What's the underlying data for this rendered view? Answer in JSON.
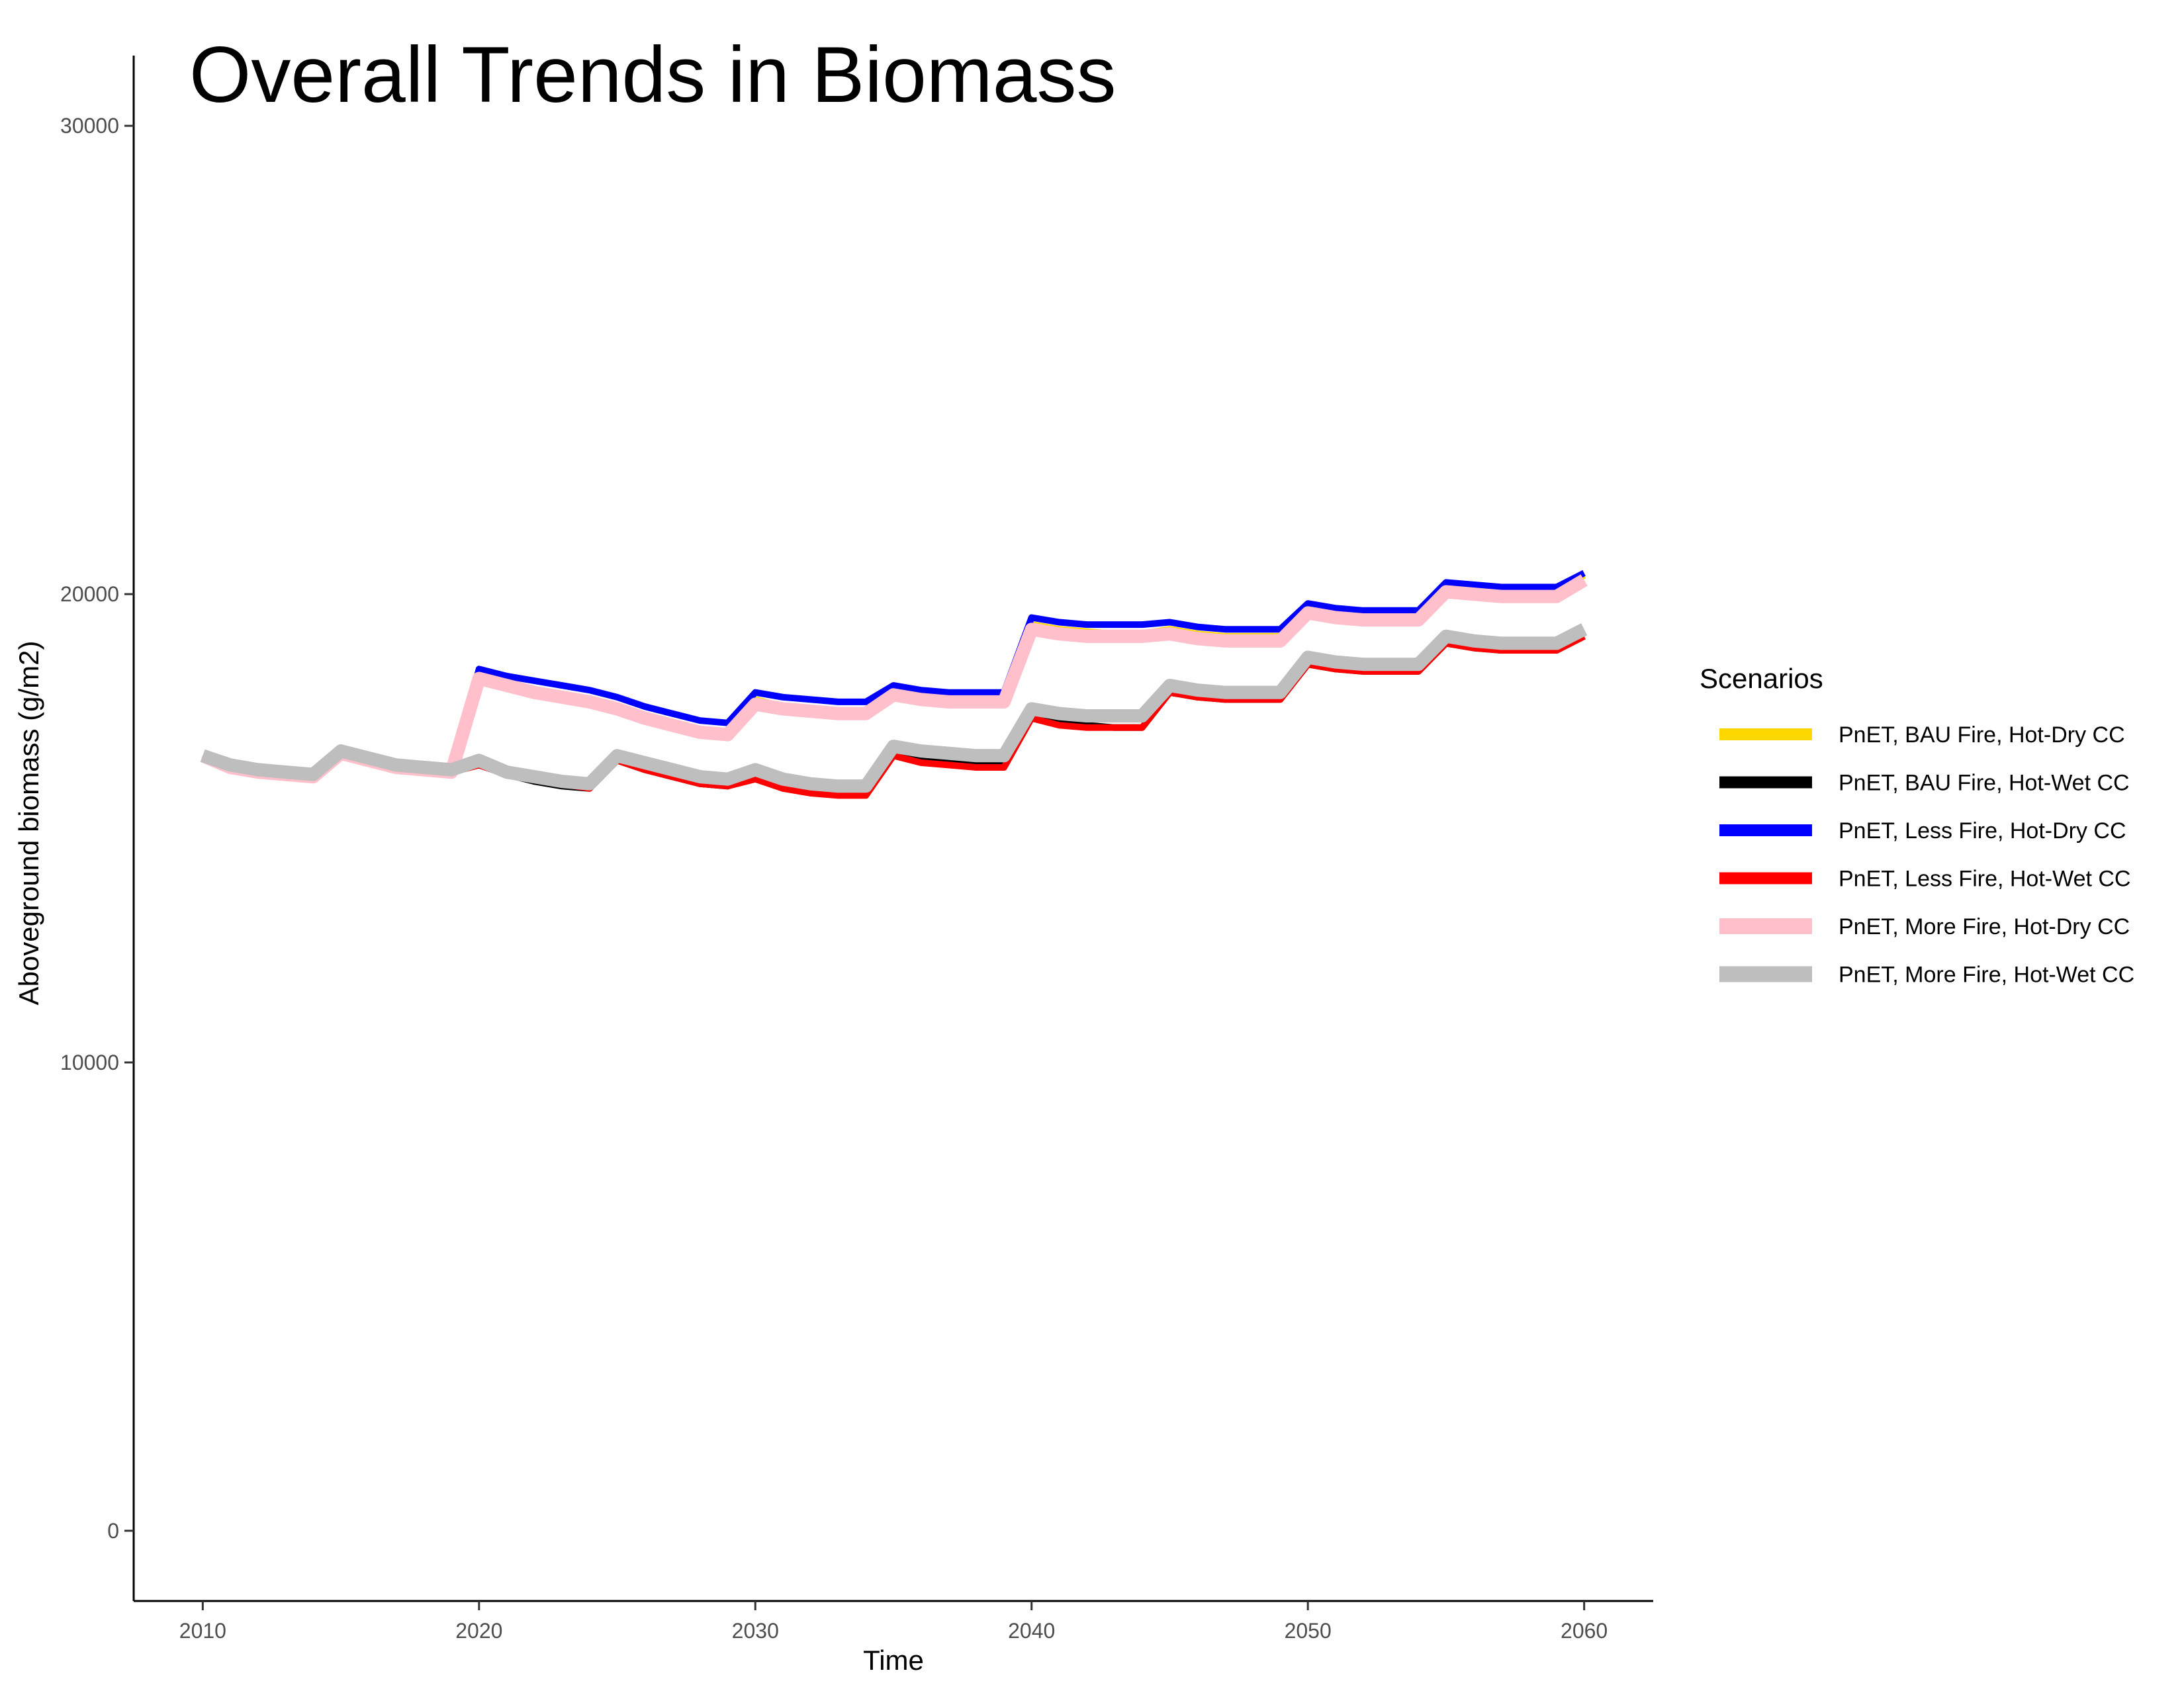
{
  "chart_data": {
    "type": "line",
    "title": "Overall Trends in Biomass",
    "xlabel": "Time",
    "ylabel": "Aboveground biomass (g/m2)",
    "xlim": [
      2007.5,
      2062.5
    ],
    "ylim": [
      -1500,
      31500
    ],
    "x_ticks": [
      "2010",
      "2020",
      "2030",
      "2040",
      "2050",
      "2060"
    ],
    "y_ticks": [
      "0",
      "10000",
      "20000",
      "30000"
    ],
    "grid": false,
    "legend_title": "Scenarios",
    "legend_position": "right",
    "x": [
      2010,
      2011,
      2012,
      2013,
      2014,
      2015,
      2016,
      2017,
      2018,
      2019,
      2020,
      2021,
      2022,
      2023,
      2024,
      2025,
      2026,
      2027,
      2028,
      2029,
      2030,
      2031,
      2032,
      2033,
      2034,
      2035,
      2036,
      2037,
      2038,
      2039,
      2040,
      2041,
      2042,
      2043,
      2044,
      2045,
      2046,
      2047,
      2048,
      2049,
      2050,
      2051,
      2052,
      2053,
      2054,
      2055,
      2056,
      2057,
      2058,
      2059,
      2060
    ],
    "series": [
      {
        "name": "PnET, BAU Fire, Hot-Dry CC",
        "color": "#FFD700",
        "width": 10,
        "values": [
          16550,
          16300,
          16200,
          16150,
          16100,
          16600,
          16450,
          16300,
          16250,
          16200,
          18300,
          18100,
          17950,
          17850,
          17750,
          17600,
          17400,
          17250,
          17100,
          17000,
          17750,
          17600,
          17550,
          17500,
          17500,
          17950,
          17800,
          17750,
          17700,
          17700,
          19350,
          19250,
          19200,
          19150,
          19150,
          19250,
          19150,
          19100,
          19100,
          19100,
          19700,
          19600,
          19550,
          19500,
          19500,
          20150,
          20100,
          20050,
          20050,
          20050,
          20400
        ]
      },
      {
        "name": "PnET, BAU Fire, Hot-Wet CC",
        "color": "#000000",
        "width": 10,
        "values": [
          16550,
          16300,
          16200,
          16150,
          16100,
          16600,
          16450,
          16300,
          16250,
          16200,
          16350,
          16150,
          16000,
          15900,
          15850,
          16450,
          16250,
          16100,
          15950,
          15900,
          16100,
          15850,
          15800,
          15750,
          15750,
          16600,
          16450,
          16400,
          16350,
          16350,
          17400,
          17250,
          17200,
          17150,
          17150,
          17900,
          17800,
          17750,
          17750,
          17750,
          18500,
          18400,
          18350,
          18350,
          18350,
          18950,
          18850,
          18800,
          18800,
          18800,
          19100
        ]
      },
      {
        "name": "PnET, Less Fire, Hot-Dry CC",
        "color": "#0000FF",
        "width": 10,
        "values": [
          16550,
          16300,
          16200,
          16150,
          16100,
          16600,
          16450,
          16300,
          16250,
          16200,
          18400,
          18250,
          18150,
          18050,
          17950,
          17800,
          17600,
          17450,
          17300,
          17250,
          17900,
          17800,
          17750,
          17700,
          17700,
          18050,
          17950,
          17900,
          17900,
          17900,
          19500,
          19400,
          19350,
          19350,
          19350,
          19400,
          19300,
          19250,
          19250,
          19250,
          19800,
          19700,
          19650,
          19650,
          19650,
          20250,
          20200,
          20150,
          20150,
          20150,
          20450
        ]
      },
      {
        "name": "PnET, Less Fire, Hot-Wet CC",
        "color": "#FF0000",
        "width": 10,
        "values": [
          16550,
          16300,
          16200,
          16150,
          16100,
          16600,
          16450,
          16300,
          16250,
          16200,
          16350,
          16150,
          16050,
          15950,
          15850,
          16450,
          16250,
          16100,
          15950,
          15900,
          16050,
          15850,
          15750,
          15700,
          15700,
          16550,
          16400,
          16350,
          16300,
          16300,
          17350,
          17200,
          17150,
          17150,
          17150,
          17900,
          17800,
          17750,
          17750,
          17750,
          18500,
          18400,
          18350,
          18350,
          18350,
          18950,
          18850,
          18800,
          18800,
          18800,
          19100
        ]
      },
      {
        "name": "PnET, More Fire, Hot-Dry CC",
        "color": "#FFC0CB",
        "width": 20,
        "values": [
          16550,
          16300,
          16200,
          16150,
          16100,
          16600,
          16450,
          16300,
          16250,
          16200,
          18200,
          18050,
          17900,
          17800,
          17700,
          17550,
          17350,
          17200,
          17050,
          17000,
          17650,
          17550,
          17500,
          17450,
          17450,
          17850,
          17750,
          17700,
          17700,
          17700,
          19250,
          19150,
          19100,
          19100,
          19100,
          19150,
          19050,
          19000,
          19000,
          19000,
          19600,
          19500,
          19450,
          19450,
          19450,
          20050,
          20000,
          19950,
          19950,
          19950,
          20300
        ]
      },
      {
        "name": "PnET, More Fire, Hot-Wet CC",
        "color": "#BEBEBE",
        "width": 20,
        "values": [
          16550,
          16350,
          16250,
          16200,
          16150,
          16650,
          16500,
          16350,
          16300,
          16250,
          16450,
          16200,
          16100,
          16000,
          15950,
          16550,
          16400,
          16250,
          16100,
          16050,
          16250,
          16050,
          15950,
          15900,
          15900,
          16750,
          16650,
          16600,
          16550,
          16550,
          17550,
          17450,
          17400,
          17400,
          17400,
          18050,
          17950,
          17900,
          17900,
          17900,
          18650,
          18550,
          18500,
          18500,
          18500,
          19100,
          19000,
          18950,
          18950,
          18950,
          19250
        ]
      }
    ]
  }
}
